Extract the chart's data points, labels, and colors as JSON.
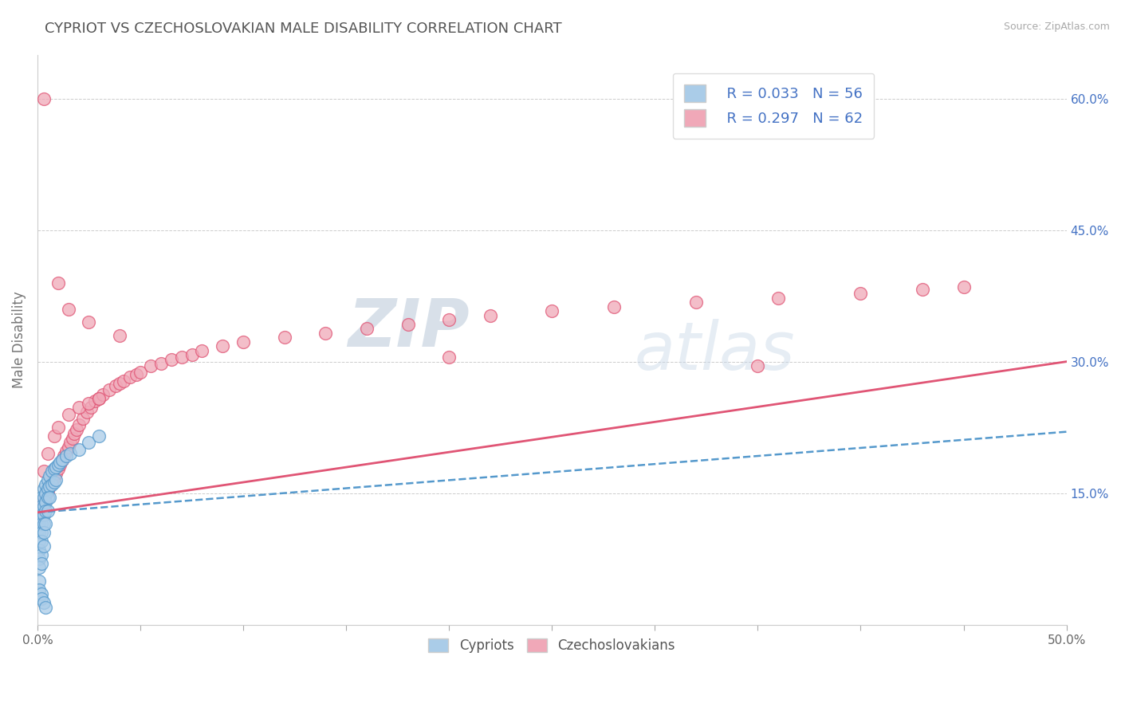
{
  "title": "CYPRIOT VS CZECHOSLOVAKIAN MALE DISABILITY CORRELATION CHART",
  "source": "Source: ZipAtlas.com",
  "ylabel": "Male Disability",
  "xlim": [
    0,
    0.5
  ],
  "ylim": [
    0,
    0.65
  ],
  "xtick_vals": [
    0.0,
    0.05,
    0.1,
    0.15,
    0.2,
    0.25,
    0.3,
    0.35,
    0.4,
    0.45,
    0.5
  ],
  "xtick_labels": [
    "0.0%",
    "",
    "",
    "",
    "",
    "",
    "",
    "",
    "",
    "",
    "50.0%"
  ],
  "yticks_right": [
    0.15,
    0.3,
    0.45,
    0.6
  ],
  "ytick_labels_right": [
    "15.0%",
    "30.0%",
    "45.0%",
    "60.0%"
  ],
  "color_blue": "#aacce8",
  "color_pink": "#f0a8b8",
  "line_blue": "#5599cc",
  "line_pink": "#e05575",
  "watermark_zip": "ZIP",
  "watermark_atlas": "atlas",
  "background_color": "#ffffff",
  "grid_color": "#cccccc",
  "cypriot_x": [
    0.001,
    0.001,
    0.001,
    0.001,
    0.001,
    0.001,
    0.001,
    0.001,
    0.001,
    0.002,
    0.002,
    0.002,
    0.002,
    0.002,
    0.002,
    0.002,
    0.002,
    0.003,
    0.003,
    0.003,
    0.003,
    0.003,
    0.003,
    0.003,
    0.004,
    0.004,
    0.004,
    0.004,
    0.004,
    0.005,
    0.005,
    0.005,
    0.005,
    0.006,
    0.006,
    0.006,
    0.007,
    0.007,
    0.008,
    0.008,
    0.009,
    0.009,
    0.01,
    0.011,
    0.012,
    0.014,
    0.016,
    0.02,
    0.025,
    0.03,
    0.001,
    0.001,
    0.002,
    0.002,
    0.003,
    0.004
  ],
  "cypriot_y": [
    0.13,
    0.12,
    0.115,
    0.11,
    0.105,
    0.095,
    0.085,
    0.075,
    0.065,
    0.145,
    0.135,
    0.125,
    0.115,
    0.105,
    0.095,
    0.08,
    0.07,
    0.155,
    0.145,
    0.135,
    0.125,
    0.115,
    0.105,
    0.09,
    0.16,
    0.15,
    0.14,
    0.13,
    0.115,
    0.165,
    0.155,
    0.145,
    0.13,
    0.17,
    0.158,
    0.145,
    0.175,
    0.16,
    0.178,
    0.162,
    0.18,
    0.165,
    0.182,
    0.185,
    0.188,
    0.192,
    0.195,
    0.2,
    0.208,
    0.215,
    0.05,
    0.04,
    0.035,
    0.03,
    0.025,
    0.02
  ],
  "czech_x": [
    0.001,
    0.002,
    0.003,
    0.004,
    0.005,
    0.006,
    0.007,
    0.008,
    0.009,
    0.01,
    0.011,
    0.012,
    0.013,
    0.014,
    0.015,
    0.016,
    0.017,
    0.018,
    0.019,
    0.02,
    0.022,
    0.024,
    0.026,
    0.028,
    0.03,
    0.032,
    0.035,
    0.038,
    0.04,
    0.042,
    0.045,
    0.048,
    0.05,
    0.055,
    0.06,
    0.065,
    0.07,
    0.075,
    0.08,
    0.09,
    0.1,
    0.12,
    0.14,
    0.16,
    0.18,
    0.2,
    0.22,
    0.25,
    0.28,
    0.32,
    0.36,
    0.4,
    0.43,
    0.45,
    0.003,
    0.005,
    0.008,
    0.01,
    0.015,
    0.02,
    0.025,
    0.03
  ],
  "czech_y": [
    0.13,
    0.135,
    0.14,
    0.148,
    0.152,
    0.158,
    0.162,
    0.168,
    0.172,
    0.178,
    0.182,
    0.188,
    0.192,
    0.198,
    0.202,
    0.208,
    0.212,
    0.218,
    0.222,
    0.228,
    0.235,
    0.242,
    0.248,
    0.255,
    0.258,
    0.262,
    0.268,
    0.272,
    0.275,
    0.278,
    0.282,
    0.285,
    0.288,
    0.295,
    0.298,
    0.302,
    0.305,
    0.308,
    0.312,
    0.318,
    0.322,
    0.328,
    0.332,
    0.338,
    0.342,
    0.348,
    0.352,
    0.358,
    0.362,
    0.368,
    0.372,
    0.378,
    0.382,
    0.385,
    0.175,
    0.195,
    0.215,
    0.225,
    0.24,
    0.248,
    0.252,
    0.258
  ],
  "czech_outliers_x": [
    0.003,
    0.01,
    0.015,
    0.025,
    0.04,
    0.2,
    0.35
  ],
  "czech_outliers_y": [
    0.6,
    0.39,
    0.36,
    0.345,
    0.33,
    0.305,
    0.295
  ]
}
